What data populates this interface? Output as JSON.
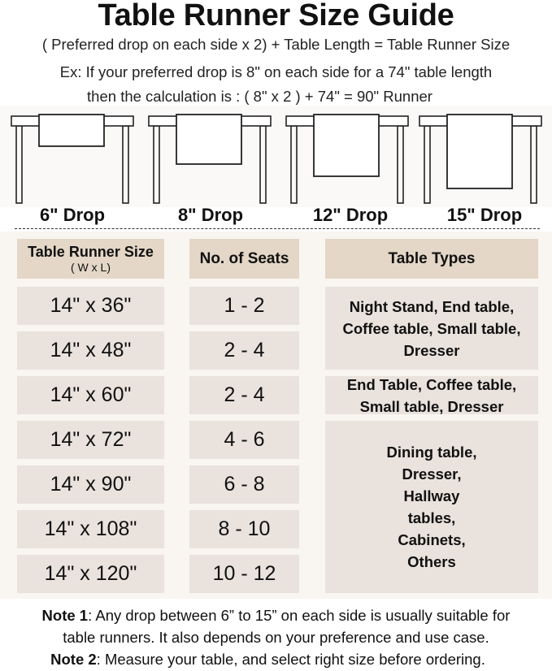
{
  "title": "Table Runner Size Guide",
  "formula": "( Preferred drop on each side x 2) + Table Length = Table Runner Size",
  "example_line1": "Ex: If your preferred drop is 8\" on each side for a 74\" table length",
  "example_line2": "then the calculation is : ( 8\" x 2 ) + 74\" = 90\" Runner",
  "drops": [
    {
      "label": "6\" Drop",
      "inches": 6
    },
    {
      "label": "8\" Drop",
      "inches": 8
    },
    {
      "label": "12\" Drop",
      "inches": 12
    },
    {
      "label": "15\" Drop",
      "inches": 15
    }
  ],
  "table": {
    "headers": {
      "size": "Table Runner Size",
      "size_sub": "( W x L)",
      "seats": "No. of Seats",
      "types": "Table Types"
    },
    "rows": [
      {
        "size": "14\" x 36\"",
        "seats": "1 - 2"
      },
      {
        "size": "14\" x 48\"",
        "seats": "2 - 4"
      },
      {
        "size": "14\" x 60\"",
        "seats": "2 - 4"
      },
      {
        "size": "14\" x 72\"",
        "seats": "4 - 6"
      },
      {
        "size": "14\" x 90\"",
        "seats": "6 - 8"
      },
      {
        "size": "14\" x 108\"",
        "seats": "8 - 10"
      },
      {
        "size": "14\" x 120\"",
        "seats": "10 - 12"
      }
    ],
    "types": [
      "Night Stand, End table, Coffee table, Small table, Dresser",
      "End Table, Coffee table, Small table, Dresser",
      "Dining table, Dresser, Hallway tables, Cabinets, Others"
    ]
  },
  "notes": {
    "note1_label": "Note 1",
    "note1_text": ": Any drop between 6” to 15” on each side is usually suitable for",
    "note1_text2": "table runners. It also depends on your preference and use case.",
    "note2_label": "Note 2",
    "note2_text": ": Measure your table, and select right size before ordering."
  },
  "colors": {
    "header_fill": "#e4d7c7",
    "cell_fill": "#e9e2dd",
    "panel": "#f9f5f1"
  }
}
